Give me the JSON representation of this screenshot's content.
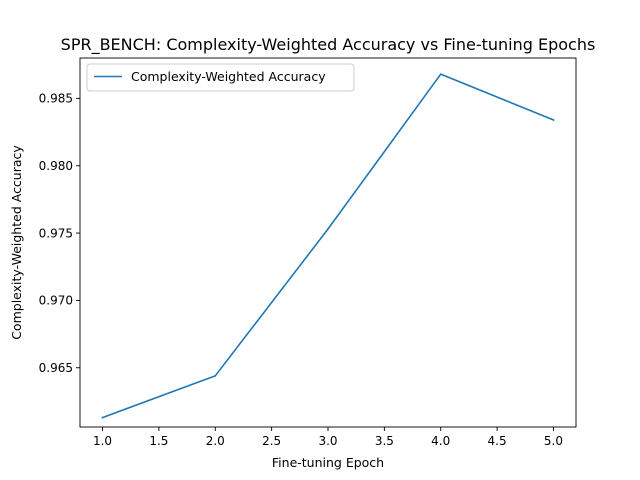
{
  "chart_data": {
    "type": "line",
    "title": "SPR_BENCH: Complexity-Weighted Accuracy vs Fine-tuning Epochs",
    "xlabel": "Fine-tuning Epoch",
    "ylabel": "Complexity-Weighted Accuracy",
    "xlim": [
      0.8,
      5.2
    ],
    "ylim": [
      0.9606,
      0.988
    ],
    "x_ticks": [
      "1.0",
      "1.5",
      "2.0",
      "2.5",
      "3.0",
      "3.5",
      "4.0",
      "4.5",
      "5.0"
    ],
    "y_ticks": [
      "0.965",
      "0.970",
      "0.975",
      "0.980",
      "0.985"
    ],
    "x_tick_values": [
      1.0,
      1.5,
      2.0,
      2.5,
      3.0,
      3.5,
      4.0,
      4.5,
      5.0
    ],
    "y_tick_values": [
      0.965,
      0.97,
      0.975,
      0.98,
      0.985
    ],
    "grid": false,
    "legend_position": "top-left",
    "series": [
      {
        "name": "Complexity-Weighted Accuracy",
        "color": "#1f77b4",
        "x": [
          1.0,
          2.0,
          3.0,
          4.0,
          5.0
        ],
        "y": [
          0.9613,
          0.9644,
          0.9753,
          0.9868,
          0.9834
        ]
      }
    ]
  }
}
